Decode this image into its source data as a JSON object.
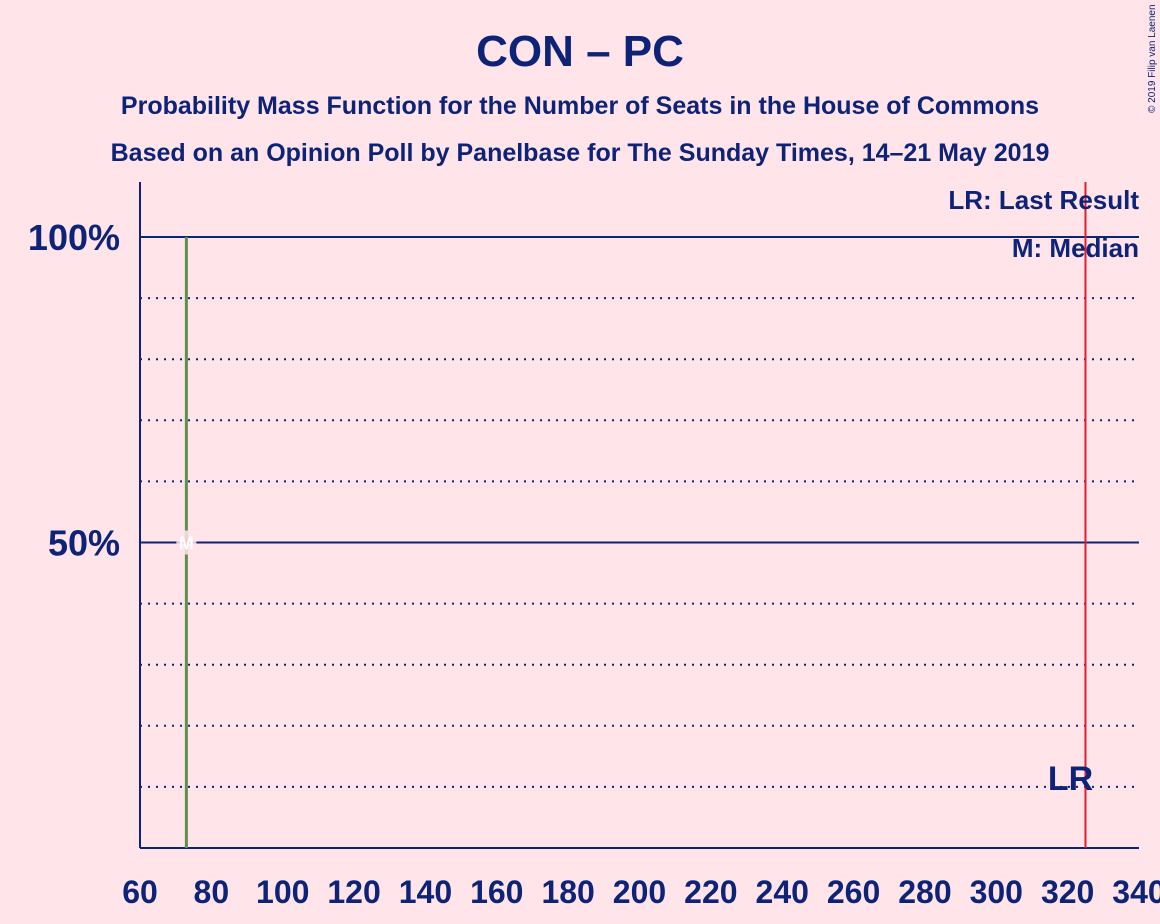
{
  "chart_data": {
    "type": "bar",
    "title": "CON – PC",
    "subtitle_lines": [
      "Probability Mass Function for the Number of Seats in the House of Commons",
      "Based on an Opinion Poll by Panelbase for The Sunday Times, 14–21 May 2019"
    ],
    "xlim": [
      60,
      340
    ],
    "x_ticks": [
      60,
      80,
      100,
      120,
      140,
      160,
      180,
      200,
      220,
      240,
      260,
      280,
      300,
      320,
      340
    ],
    "ylim": [
      0,
      110
    ],
    "y_ticks": [
      {
        "value": 50,
        "label": "50%"
      },
      {
        "value": 100,
        "label": "100%"
      }
    ],
    "y_dotted_gridlines": [
      10,
      20,
      30,
      40,
      60,
      70,
      80,
      90
    ],
    "series": [
      {
        "x": [
          73
        ],
        "values": [
          100
        ],
        "color": "#5f8f4e"
      }
    ],
    "median": {
      "x": 73,
      "y": 50,
      "label": "M"
    },
    "last_result": {
      "x": 325,
      "label": "LR",
      "color": "#e01e2e"
    },
    "legend": {
      "lines": [
        "LR: Last Result",
        "M: Median"
      ],
      "placement": "top-right"
    },
    "copyright": "© 2019 Filip van Laenen",
    "colors": {
      "background": "#ffe4e9",
      "axis": "#0d2378",
      "bar": "#5f8f4e",
      "last_result": "#e01e2e"
    }
  }
}
